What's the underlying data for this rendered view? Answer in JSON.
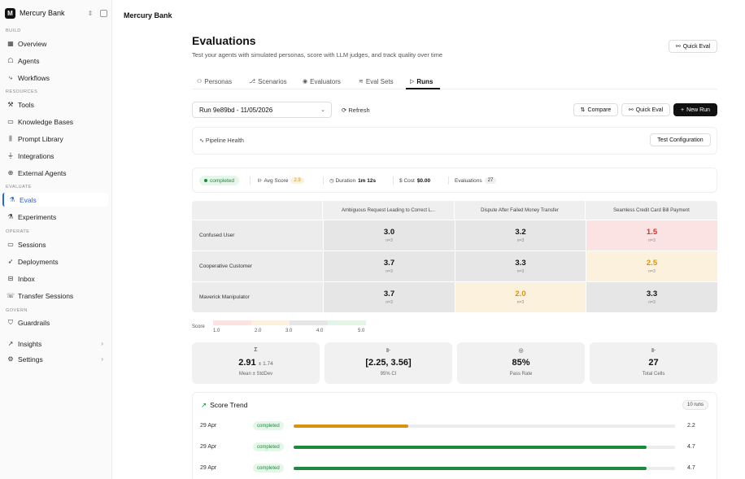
{
  "sidebar": {
    "org": {
      "logo": "M",
      "name": "Mercury Bank",
      "icon": "chevron-up-down-icon"
    },
    "sections": {
      "build": "BUILD",
      "resources": "RESOURCES",
      "evaluate": "EVALUATE",
      "operate": "OPERATE",
      "govern": "GOVERN"
    },
    "items": {
      "overview": {
        "label": "Overview",
        "icon": "grid-icon"
      },
      "agents": {
        "label": "Agents",
        "icon": "robot-icon"
      },
      "workflows": {
        "label": "Workflows",
        "icon": "workflow-icon"
      },
      "tools": {
        "label": "Tools",
        "icon": "wrench-icon"
      },
      "knowledge_bases": {
        "label": "Knowledge Bases",
        "icon": "book-icon"
      },
      "prompt_library": {
        "label": "Prompt Library",
        "icon": "library-icon"
      },
      "integrations": {
        "label": "Integrations",
        "icon": "plug-icon"
      },
      "external_agents": {
        "label": "External Agents",
        "icon": "globe-icon"
      },
      "evals": {
        "label": "Evals",
        "icon": "flask-icon"
      },
      "experiments": {
        "label": "Experiments",
        "icon": "flask-icon"
      },
      "sessions": {
        "label": "Sessions",
        "icon": "chat-icon"
      },
      "deployments": {
        "label": "Deployments",
        "icon": "rocket-icon"
      },
      "inbox": {
        "label": "Inbox",
        "icon": "inbox-icon"
      },
      "transfer_sessions": {
        "label": "Transfer Sessions",
        "icon": "phone-transfer-icon"
      },
      "guardrails": {
        "label": "Guardrails",
        "icon": "shield-icon"
      },
      "insights": {
        "label": "Insights",
        "icon": "trend-icon"
      },
      "settings": {
        "label": "Settings",
        "icon": "gear-icon"
      }
    }
  },
  "header": {
    "brand": "Mercury Bank"
  },
  "page": {
    "title": "Evaluations",
    "subtitle": "Test your agents with simulated personas, score with LLM judges, and track quality over time",
    "quick_eval_label": "Quick Eval"
  },
  "tabs": [
    "Personas",
    "Scenarios",
    "Evaluators",
    "Eval Sets",
    "Runs"
  ],
  "tab_icons": [
    "people-icon",
    "branch-icon",
    "eye-icon",
    "layers-icon",
    "play-icon"
  ],
  "run_selector": {
    "value": "Run 9e89bd - 11/05/2026"
  },
  "toolbar": {
    "refresh": "Refresh",
    "compare": "Compare",
    "quick_eval": "Quick Eval",
    "new_run": "New Run"
  },
  "pipeline": {
    "label": "Pipeline Health",
    "test_config": "Test Configuration"
  },
  "run_stats": {
    "status": "completed",
    "avg_score_label": "Avg Score",
    "avg_score": "2.9",
    "duration_label": "Duration",
    "duration": "1m 12s",
    "cost_label": "Cost",
    "cost": "$0.00",
    "evaluations_label": "Evaluations",
    "evaluations": "27"
  },
  "matrix": {
    "columns": [
      "Ambiguous Request Leading to Correct L...",
      "Dispute After Failed Money Transfer",
      "Seamless Credit Card Bill Payment"
    ],
    "rows": [
      {
        "persona": "Confused User",
        "cells": [
          {
            "score": "3.0",
            "n": "n=3"
          },
          {
            "score": "3.2",
            "n": "n=3"
          },
          {
            "score": "1.5",
            "n": "n=3"
          }
        ]
      },
      {
        "persona": "Cooperative Customer",
        "cells": [
          {
            "score": "3.7",
            "n": "n=3"
          },
          {
            "score": "3.3",
            "n": "n=3"
          },
          {
            "score": "2.5",
            "n": "n=3"
          }
        ]
      },
      {
        "persona": "Maverick Manipulator",
        "cells": [
          {
            "score": "3.7",
            "n": "n=3"
          },
          {
            "score": "2.0",
            "n": "n=3"
          },
          {
            "score": "3.3",
            "n": "n=3"
          }
        ]
      }
    ],
    "colors": {
      "low": "#fbe3e3",
      "low_text": "#d0342c",
      "mid": "#fcf1dd",
      "mid_text": "#d99310",
      "neutral": "#e6e6e6",
      "neutral_text": "#111111"
    }
  },
  "legend": {
    "label": "Score",
    "ticks": [
      "1.0",
      "2.0",
      "3.0",
      "4.0",
      "5.0"
    ],
    "colors": [
      "#fbe3e3",
      "#fcf1dd",
      "#e6e6e6",
      "#e3f5e6"
    ]
  },
  "summary": [
    {
      "icon": "sigma-icon",
      "glyph": "Σ",
      "value": "2.91",
      "extra": "± 1.74",
      "label": "Mean ± StdDev"
    },
    {
      "icon": "bar-chart-icon",
      "glyph": "⊪",
      "value": "[2.25, 3.56]",
      "extra": "",
      "label": "95% CI"
    },
    {
      "icon": "target-icon",
      "glyph": "◎",
      "value": "85%",
      "extra": "",
      "label": "Pass Rate"
    },
    {
      "icon": "bar-chart-icon",
      "glyph": "⊪",
      "value": "27",
      "extra": "",
      "label": "Total Cells"
    }
  ],
  "trend": {
    "title": "Score Trend",
    "runs": "10 runs",
    "rows": [
      {
        "date": "29 Apr",
        "status": "completed",
        "value": 2.2,
        "label": "2.2",
        "color": "#d99310"
      },
      {
        "date": "29 Apr",
        "status": "completed",
        "value": 4.7,
        "label": "4.7",
        "color": "#1b8a3c"
      },
      {
        "date": "29 Apr",
        "status": "completed",
        "value": 4.7,
        "label": "4.7",
        "color": "#1b8a3c"
      }
    ]
  }
}
